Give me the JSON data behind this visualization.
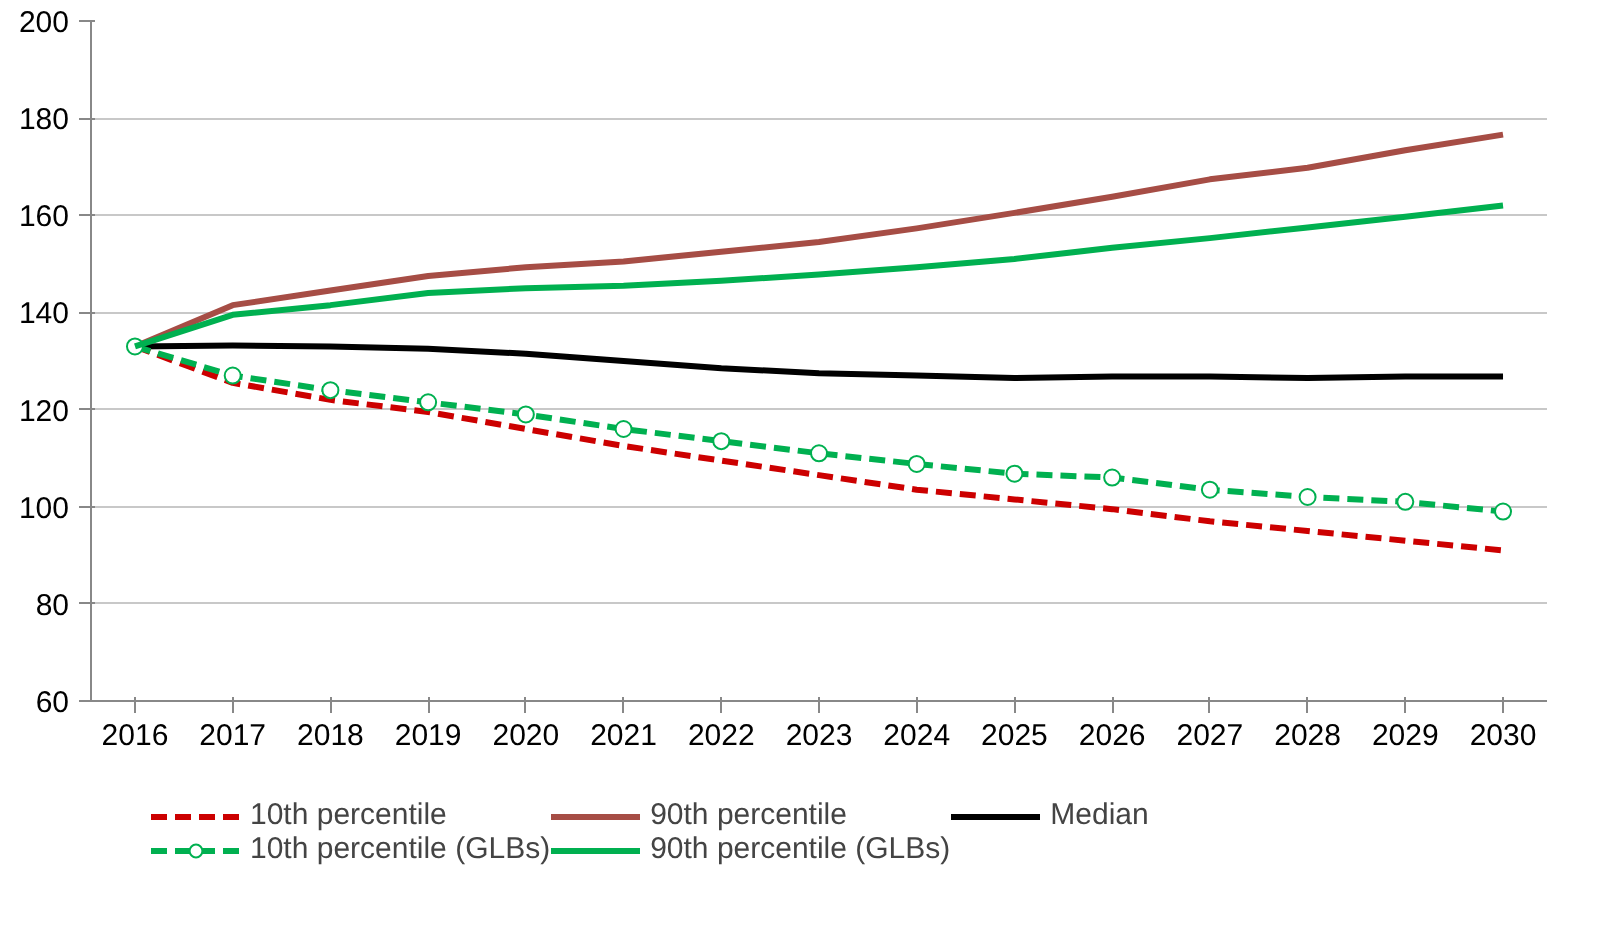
{
  "chart_data": {
    "type": "line",
    "x": [
      2016,
      2017,
      2018,
      2019,
      2020,
      2021,
      2022,
      2023,
      2024,
      2025,
      2026,
      2027,
      2028,
      2029,
      2030
    ],
    "xlim": [
      2015.55,
      2030.45
    ],
    "xticks": [
      2016,
      2017,
      2018,
      2019,
      2020,
      2021,
      2022,
      2023,
      2024,
      2025,
      2026,
      2027,
      2028,
      2029,
      2030
    ],
    "ylim": [
      60,
      200
    ],
    "yticks": [
      60,
      80,
      100,
      120,
      140,
      160,
      180,
      200
    ],
    "grid": "y",
    "legend": "bottom",
    "series": [
      {
        "name": "10th percentile",
        "color": "#cc0000",
        "line_style": "dashed",
        "marker": "none",
        "values": [
          133,
          125.5,
          122,
          119.5,
          116,
          112.5,
          109.5,
          106.5,
          103.5,
          101.5,
          99.5,
          97,
          95,
          93,
          91
        ]
      },
      {
        "name": "90th percentile",
        "color": "#a64d45",
        "line_style": "solid",
        "marker": "none",
        "values": [
          133,
          141.5,
          144.5,
          147.5,
          149.3,
          150.5,
          152.5,
          154.5,
          157.3,
          160.5,
          163.8,
          167.4,
          169.8,
          173.4,
          176.6
        ]
      },
      {
        "name": "Median",
        "color": "#000000",
        "line_style": "solid",
        "marker": "none",
        "values": [
          133,
          133.2,
          133,
          132.5,
          131.5,
          130,
          128.5,
          127.5,
          127,
          126.5,
          126.8,
          126.8,
          126.5,
          126.8,
          126.8
        ]
      },
      {
        "name": "10th percentile (GLBs)",
        "color": "#00b050",
        "line_style": "dashed",
        "marker": "circle",
        "values": [
          133,
          127,
          124,
          121.5,
          119,
          116,
          113.5,
          111,
          108.8,
          106.8,
          106,
          103.5,
          102,
          101,
          99
        ]
      },
      {
        "name": "90th percentile (GLBs)",
        "color": "#00b050",
        "line_style": "solid",
        "marker": "none",
        "values": [
          133,
          139.5,
          141.5,
          144,
          145,
          145.5,
          146.5,
          147.8,
          149.3,
          151,
          153.3,
          155.3,
          157.5,
          159.7,
          162
        ]
      }
    ]
  }
}
